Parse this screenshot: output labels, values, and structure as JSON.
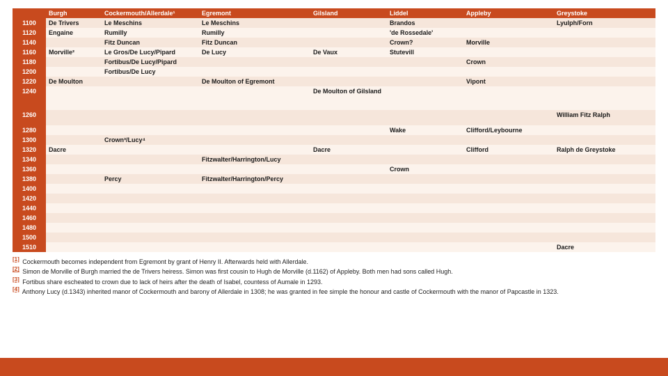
{
  "columns": [
    "",
    "Burgh",
    "Cockermouth/Allerdale¹",
    "Egremont",
    "Gilsland",
    "Liddel",
    "Appleby",
    "Greystoke"
  ],
  "rows": [
    {
      "year": "1100",
      "band": "a",
      "cells": [
        "De Trivers",
        "Le Meschins",
        "Le Meschins",
        "",
        "Brandos",
        "",
        "Lyulph/Forn"
      ]
    },
    {
      "year": "1120",
      "band": "b",
      "cells": [
        "Engaine",
        "Rumilly",
        "Rumilly",
        "",
        "'de Rossedale'",
        "",
        ""
      ]
    },
    {
      "year": "1140",
      "band": "a",
      "cells": [
        "",
        "Fitz Duncan",
        "Fitz Duncan",
        "",
        "Crown?",
        "Morville",
        ""
      ]
    },
    {
      "year": "1160",
      "band": "b",
      "cells": [
        "Morville²",
        "Le Gros/De Lucy/Pipard",
        "De Lucy",
        "De Vaux",
        "Stutevill",
        "",
        ""
      ]
    },
    {
      "year": "1180",
      "band": "a",
      "cells": [
        "",
        "Fortibus/De Lucy/Pipard",
        "",
        "",
        "",
        "Crown",
        ""
      ]
    },
    {
      "year": "1200",
      "band": "b",
      "cells": [
        "",
        "Fortibus/De Lucy",
        "",
        "",
        "",
        "",
        ""
      ]
    },
    {
      "year": "1220",
      "band": "a",
      "cells": [
        "De Moulton",
        "",
        "De Moulton of Egremont",
        "",
        "",
        "Vipont",
        ""
      ]
    },
    {
      "year": "1240",
      "band": "b",
      "tall": true,
      "cells": [
        "",
        "",
        "",
        "De Moulton of Gilsland",
        "",
        "",
        ""
      ]
    },
    {
      "year": "1260",
      "band": "a",
      "mid": true,
      "cells": [
        "",
        "",
        "",
        "",
        "",
        "",
        "William Fitz Ralph"
      ]
    },
    {
      "year": "1280",
      "band": "b",
      "cells": [
        "",
        "",
        "",
        "",
        "Wake",
        "Clifford/Leybourne",
        ""
      ]
    },
    {
      "year": "1300",
      "band": "a",
      "cells": [
        "",
        "Crown³/Lucy⁴",
        "",
        "",
        "",
        "",
        ""
      ]
    },
    {
      "year": "1320",
      "band": "b",
      "cells": [
        "Dacre",
        "",
        "",
        "Dacre",
        "",
        "Clifford",
        "Ralph de Greystoke"
      ]
    },
    {
      "year": "1340",
      "band": "a",
      "cells": [
        "",
        "",
        "Fitzwalter/Harrington/Lucy",
        "",
        "",
        "",
        ""
      ]
    },
    {
      "year": "1360",
      "band": "b",
      "cells": [
        "",
        "",
        "",
        "",
        "Crown",
        "",
        ""
      ]
    },
    {
      "year": "1380",
      "band": "a",
      "cells": [
        "",
        "Percy",
        "Fitzwalter/Harrington/Percy",
        "",
        "",
        "",
        ""
      ]
    },
    {
      "year": "1400",
      "band": "b",
      "cells": [
        "",
        "",
        "",
        "",
        "",
        "",
        ""
      ]
    },
    {
      "year": "1420",
      "band": "a",
      "cells": [
        "",
        "",
        "",
        "",
        "",
        "",
        ""
      ]
    },
    {
      "year": "1440",
      "band": "b",
      "cells": [
        "",
        "",
        "",
        "",
        "",
        "",
        ""
      ]
    },
    {
      "year": "1460",
      "band": "a",
      "cells": [
        "",
        "",
        "",
        "",
        "",
        "",
        ""
      ]
    },
    {
      "year": "1480",
      "band": "b",
      "cells": [
        "",
        "",
        "",
        "",
        "",
        "",
        ""
      ]
    },
    {
      "year": "1500",
      "band": "a",
      "cells": [
        "",
        "",
        "",
        "",
        "",
        "",
        ""
      ]
    },
    {
      "year": "1510",
      "band": "b",
      "cells": [
        "",
        "",
        "",
        "",
        "",
        "",
        "Dacre"
      ]
    }
  ],
  "footnotes": [
    {
      "mark": "[1]",
      "text": "Cockermouth becomes independent from Egremont by grant of Henry II. Afterwards held with Allerdale."
    },
    {
      "mark": "[2]",
      "text": "Simon de Morville of Burgh married the de Trivers heiress. Simon was first cousin to Hugh de Morville (d.1162) of Appleby. Both men had sons called Hugh."
    },
    {
      "mark": "[3]",
      "text": "Fortibus share escheated to crown due to lack of heirs after the death of Isabel, countess of Aumale in 1293."
    },
    {
      "mark": "[4]",
      "text": "Anthony Lucy (d.1343) inherited manor of Cockermouth and barony of Allerdale in 1308; he was granted in fee simple the honour and castle of Cockermouth with the manor of Papcastle in 1323."
    }
  ],
  "colors": {
    "header": "#c84a1e",
    "band_a": "#f6e6db",
    "band_b": "#fcf3ec"
  }
}
